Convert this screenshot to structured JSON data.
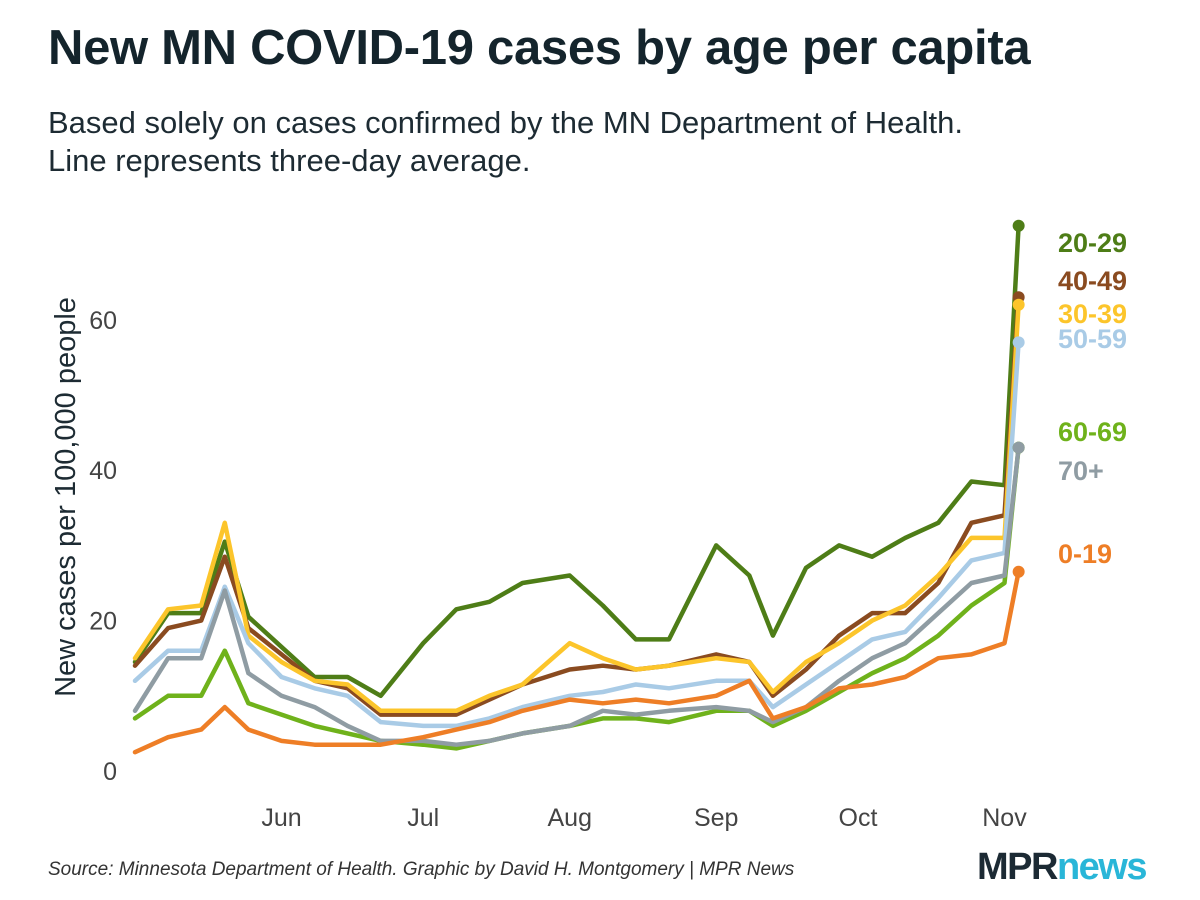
{
  "header": {
    "title": "New MN COVID-19 cases by age per capita",
    "subtitle_line1": "Based solely on cases confirmed by the MN Department of Health.",
    "subtitle_line2": "Line represents three-day average."
  },
  "footer": {
    "source": "Source: Minnesota Department of Health. Graphic by David H. Montgomery | MPR News",
    "logo_part1": "MPR",
    "logo_part2": "news"
  },
  "chart_data": {
    "type": "line",
    "title": "New MN COVID-19 cases by age per capita",
    "xlabel": "",
    "ylabel": "New cases per 100,000 people",
    "ylim": [
      0,
      73
    ],
    "xlim": [
      "2020-05-01",
      "2020-11-10"
    ],
    "yticks": [
      0,
      20,
      40,
      60
    ],
    "xticks": [
      {
        "label": "Jun",
        "date": "2020-06-01"
      },
      {
        "label": "Jul",
        "date": "2020-07-01"
      },
      {
        "label": "Aug",
        "date": "2020-08-01"
      },
      {
        "label": "Sep",
        "date": "2020-09-01"
      },
      {
        "label": "Oct",
        "date": "2020-10-01"
      },
      {
        "label": "Nov",
        "date": "2020-11-01"
      }
    ],
    "grid": false,
    "legend": "direct labels at line ends, right side",
    "x": [
      "2020-05-01",
      "2020-05-08",
      "2020-05-15",
      "2020-05-20",
      "2020-05-25",
      "2020-06-01",
      "2020-06-08",
      "2020-06-15",
      "2020-06-22",
      "2020-07-01",
      "2020-07-08",
      "2020-07-15",
      "2020-07-22",
      "2020-08-01",
      "2020-08-08",
      "2020-08-15",
      "2020-08-22",
      "2020-09-01",
      "2020-09-08",
      "2020-09-13",
      "2020-09-20",
      "2020-09-27",
      "2020-10-04",
      "2020-10-11",
      "2020-10-18",
      "2020-10-25",
      "2020-11-01",
      "2020-11-04"
    ],
    "series": [
      {
        "name": "20-29",
        "color": "#4e7d17",
        "values": [
          14.5,
          21,
          21,
          30.5,
          20.5,
          16.5,
          12.5,
          12.5,
          10,
          17,
          21.5,
          22.5,
          25,
          26,
          22,
          17.5,
          17.5,
          30,
          26,
          18,
          27,
          30,
          28.5,
          31,
          33,
          38.5,
          38,
          72.5
        ]
      },
      {
        "name": "40-49",
        "color": "#8a4b20",
        "values": [
          14,
          19,
          20,
          28.5,
          19,
          15.5,
          12,
          11,
          7.5,
          7.5,
          7.5,
          9.5,
          11.5,
          13.5,
          14,
          13.5,
          14,
          15.5,
          14.5,
          10,
          13.5,
          18,
          21,
          21,
          25,
          33,
          34,
          63
        ]
      },
      {
        "name": "30-39",
        "color": "#fcc52b",
        "values": [
          15,
          21.5,
          22,
          33,
          18,
          14.5,
          12,
          11.5,
          8,
          8,
          8,
          10,
          11.5,
          17,
          15,
          13.5,
          14,
          15,
          14.5,
          10.5,
          14.5,
          17,
          20,
          22,
          26,
          31,
          31,
          62
        ]
      },
      {
        "name": "50-59",
        "color": "#a9cbe6",
        "values": [
          12,
          16,
          16,
          24.5,
          17,
          12.5,
          11,
          10,
          6.5,
          6,
          6,
          7,
          8.5,
          10,
          10.5,
          11.5,
          11,
          12,
          12,
          8.5,
          11.5,
          14.5,
          17.5,
          18.5,
          23,
          28,
          29,
          57
        ]
      },
      {
        "name": "60-69",
        "color": "#6fb21b",
        "values": [
          7,
          10,
          10,
          16,
          9,
          7.5,
          6,
          5,
          4,
          3.5,
          3,
          4,
          5,
          6,
          7,
          7,
          6.5,
          8,
          8,
          6,
          8,
          10.5,
          13,
          15,
          18,
          22,
          25,
          43
        ]
      },
      {
        "name": "70+",
        "color": "#8f9ca3",
        "values": [
          8,
          15,
          15,
          24,
          13,
          10,
          8.5,
          6,
          4,
          4,
          3.5,
          4,
          5,
          6,
          8,
          7.5,
          8,
          8.5,
          8,
          6.5,
          8.5,
          12,
          15,
          17,
          21,
          25,
          26,
          43
        ]
      },
      {
        "name": "0-19",
        "color": "#ee7e26",
        "values": [
          2.5,
          4.5,
          5.5,
          8.5,
          5.5,
          4,
          3.5,
          3.5,
          3.5,
          4.5,
          5.5,
          6.5,
          8,
          9.5,
          9,
          9.5,
          9,
          10,
          12,
          7,
          8.5,
          11,
          11.5,
          12.5,
          15,
          15.5,
          17,
          26.5
        ]
      }
    ]
  }
}
